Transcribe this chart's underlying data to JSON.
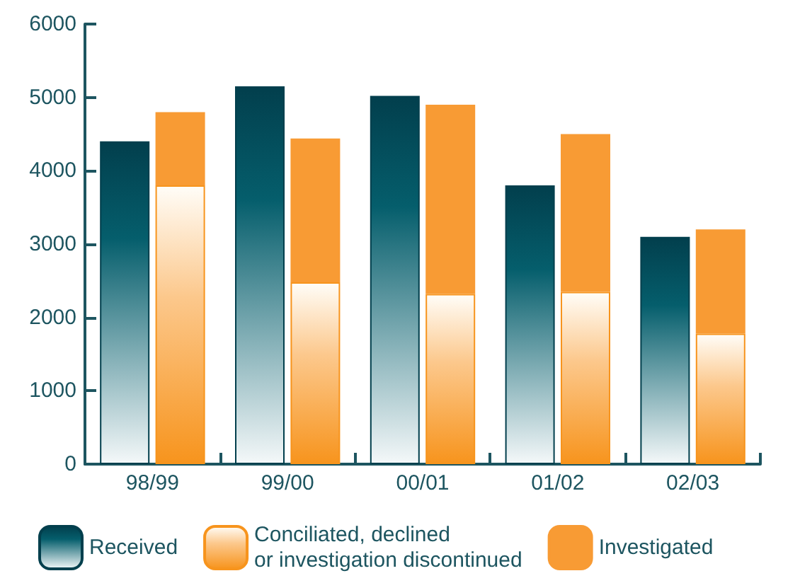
{
  "chart_data": {
    "type": "bar",
    "categories": [
      "98/99",
      "99/00",
      "00/01",
      "01/02",
      "02/03"
    ],
    "series": [
      {
        "name": "Received",
        "color": "#023f4d",
        "values": [
          4400,
          5150,
          5020,
          3800,
          3100
        ]
      },
      {
        "name": "Conciliated, declined\nor investigation discontinued",
        "color": "#f7941d",
        "base": [
          0,
          0,
          0,
          0,
          0
        ],
        "values": [
          3800,
          2480,
          2320,
          2350,
          1780
        ]
      },
      {
        "name": "Investigated",
        "color": "#f89b34",
        "base": [
          3800,
          2480,
          2320,
          2350,
          1780
        ],
        "values": [
          1000,
          1960,
          2580,
          2150,
          1420
        ]
      }
    ],
    "ylim": [
      0,
      6000
    ],
    "yticks": [
      0,
      1000,
      2000,
      3000,
      4000,
      5000,
      6000
    ],
    "grid": false,
    "legend": "bottom"
  }
}
